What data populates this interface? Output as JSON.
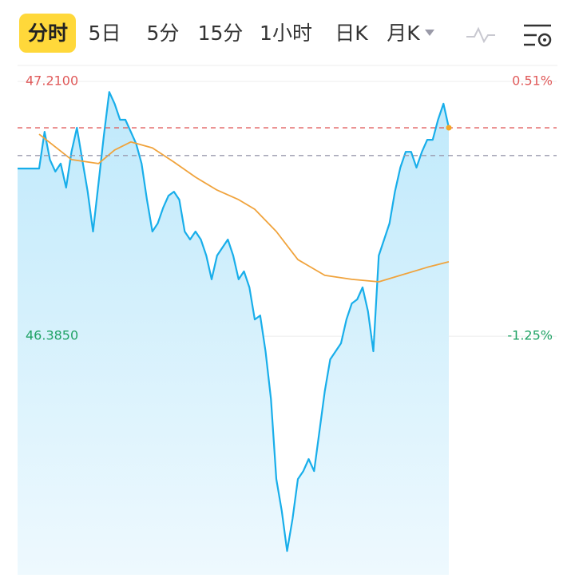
{
  "tabs": [
    "分时",
    "5日",
    "5分",
    "15分",
    "1小时",
    "日K",
    "月K"
  ],
  "selected_tab": 0,
  "chart_data": {
    "type": "line",
    "xlim": [
      0,
      100
    ],
    "ylim": [
      45.612,
      47.254
    ],
    "y2lim": [
      -2.9,
      0.604
    ],
    "yticks": [
      {
        "value": 47.21,
        "label": "47.2100"
      },
      {
        "value": 46.385,
        "label": "46.3850"
      }
    ],
    "y2ticks": [
      {
        "value": 0.51,
        "label": "0.51%"
      },
      {
        "value": -1.25,
        "label": "-1.25%"
      }
    ],
    "reference_lines": [
      {
        "value": 47.06,
        "color": "#e05a5a"
      },
      {
        "value": 46.97,
        "color": "#9a9aae"
      }
    ],
    "series": [
      {
        "color": "#18aeea",
        "fill": true,
        "values": [
          46.928,
          46.928,
          46.928,
          46.928,
          46.928,
          47.047,
          46.957,
          46.918,
          46.944,
          46.866,
          46.982,
          47.06,
          46.957,
          46.853,
          46.724,
          46.879,
          47.034,
          47.176,
          47.138,
          47.086,
          47.086,
          47.047,
          47.008,
          46.944,
          46.827,
          46.724,
          46.75,
          46.801,
          46.84,
          46.853,
          46.827,
          46.724,
          46.698,
          46.724,
          46.698,
          46.646,
          46.569,
          46.646,
          46.672,
          46.698,
          46.646,
          46.569,
          46.595,
          46.543,
          46.439,
          46.452,
          46.336,
          46.181,
          45.922,
          45.819,
          45.689,
          45.793,
          45.922,
          45.948,
          45.987,
          45.948,
          46.077,
          46.207,
          46.31,
          46.336,
          46.362,
          46.439,
          46.491,
          46.504,
          46.543,
          46.465,
          46.336,
          46.646,
          46.698,
          46.75,
          46.853,
          46.931,
          46.982,
          46.982,
          46.931,
          46.982,
          47.021,
          47.021,
          47.086,
          47.138,
          47.06
        ]
      },
      {
        "color": "#f0a33c",
        "x": [
          4,
          10,
          15,
          18,
          21,
          25,
          29,
          33,
          37,
          41,
          44,
          48,
          52,
          57,
          62,
          67,
          72,
          76,
          80
        ],
        "values": [
          47.039,
          46.957,
          46.944,
          46.988,
          47.014,
          46.995,
          46.949,
          46.9,
          46.858,
          46.827,
          46.796,
          46.724,
          46.633,
          46.582,
          46.569,
          46.561,
          46.587,
          46.608,
          46.626
        ]
      }
    ],
    "last_dot_color": "#f5a623"
  }
}
